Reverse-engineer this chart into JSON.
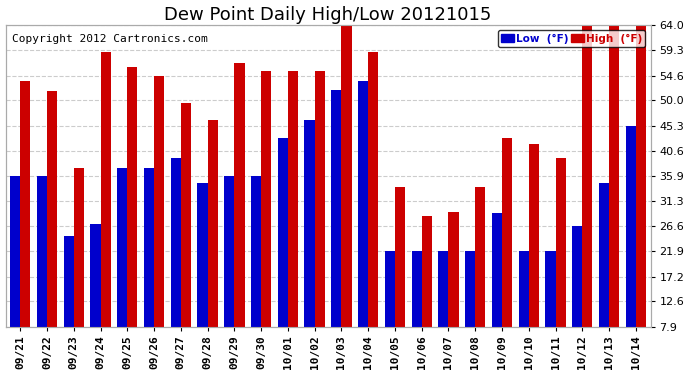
{
  "title": "Dew Point Daily High/Low 20121015",
  "copyright": "Copyright 2012 Cartronics.com",
  "legend_low": "Low  (°F)",
  "legend_high": "High  (°F)",
  "categories": [
    "09/21",
    "09/22",
    "09/23",
    "09/24",
    "09/25",
    "09/26",
    "09/27",
    "09/28",
    "09/29",
    "09/30",
    "10/01",
    "10/02",
    "10/03",
    "10/04",
    "10/05",
    "10/06",
    "10/07",
    "10/08",
    "10/09",
    "10/10",
    "10/11",
    "10/12",
    "10/13",
    "10/14"
  ],
  "low_values": [
    35.9,
    35.9,
    24.8,
    27.0,
    37.4,
    37.4,
    39.2,
    34.7,
    35.9,
    35.9,
    43.0,
    46.4,
    52.0,
    53.6,
    22.0,
    22.0,
    22.0,
    21.9,
    29.0,
    21.9,
    21.9,
    26.6,
    34.7,
    45.3
  ],
  "high_values": [
    53.6,
    51.8,
    37.4,
    59.0,
    56.3,
    54.6,
    49.6,
    46.4,
    57.0,
    55.4,
    55.4,
    55.4,
    64.0,
    59.0,
    33.8,
    28.4,
    29.3,
    33.8,
    43.0,
    41.9,
    39.2,
    64.0,
    64.0,
    64.0
  ],
  "bar_low_color": "#0000cc",
  "bar_high_color": "#cc0000",
  "background_color": "#ffffff",
  "grid_color": "#cccccc",
  "yticks": [
    7.9,
    12.6,
    17.2,
    21.9,
    26.6,
    31.3,
    35.9,
    40.6,
    45.3,
    50.0,
    54.6,
    59.3,
    64.0
  ],
  "ylim_min": 7.9,
  "ylim_max": 64.0,
  "title_fontsize": 13,
  "copyright_fontsize": 8,
  "tick_fontsize": 8,
  "bar_width": 0.38
}
